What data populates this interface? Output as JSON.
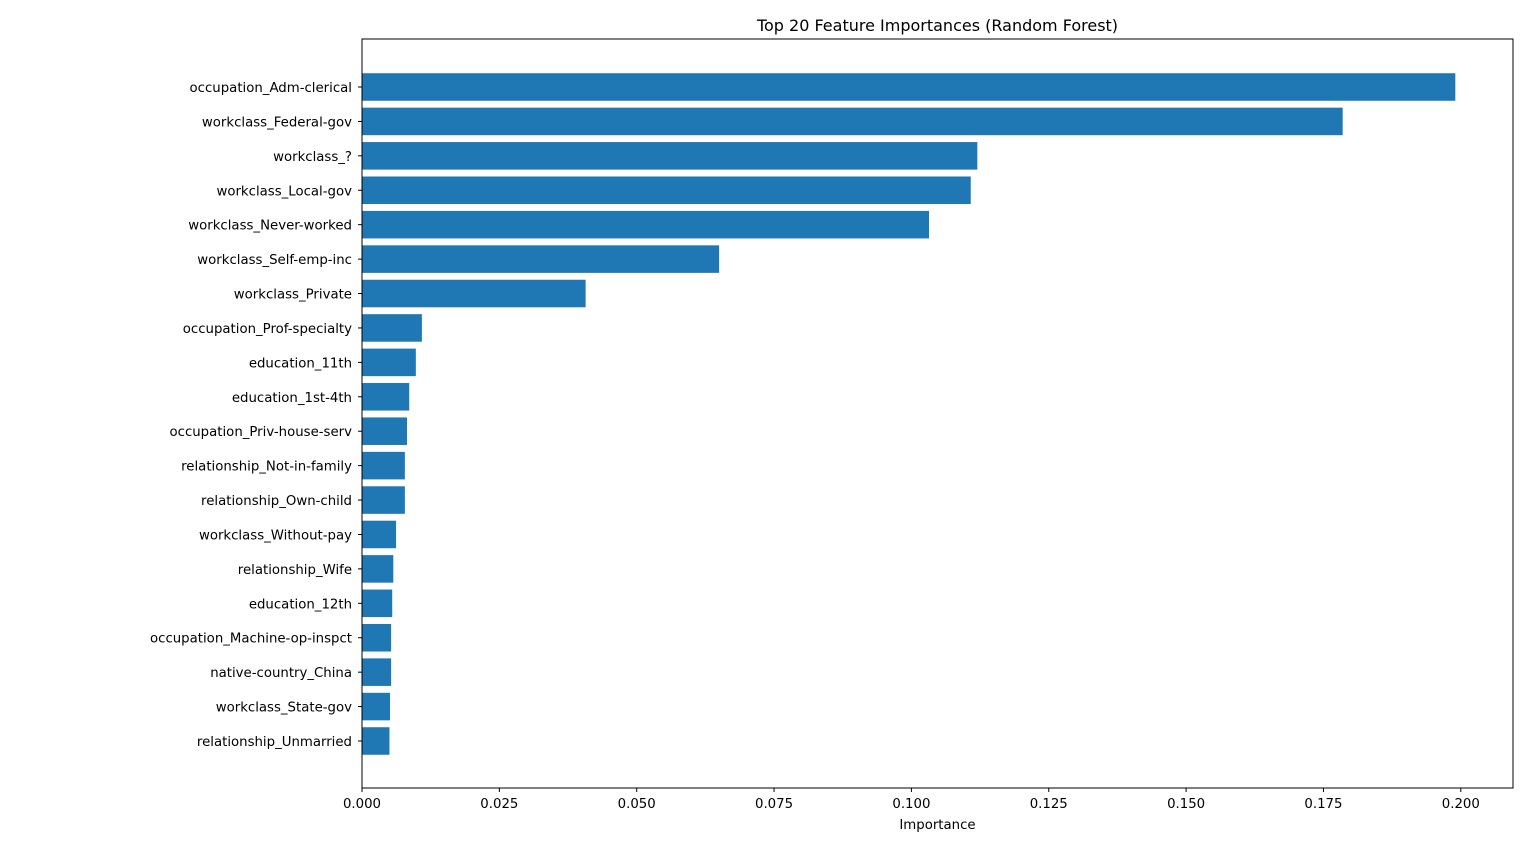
{
  "chart_data": {
    "type": "bar",
    "orientation": "horizontal",
    "title": "Top 20 Feature Importances (Random Forest)",
    "xlabel": "Importance",
    "ylabel": "",
    "xlim": [
      0,
      0.2095
    ],
    "x_ticks": [
      "0.000",
      "0.025",
      "0.050",
      "0.075",
      "0.100",
      "0.125",
      "0.150",
      "0.175",
      "0.200"
    ],
    "bar_color": "#1f77b4",
    "grid": false,
    "categories": [
      "occupation_Adm-clerical",
      "workclass_Federal-gov",
      "workclass_?",
      "workclass_Local-gov",
      "workclass_Never-worked",
      "workclass_Self-emp-inc",
      "workclass_Private",
      "occupation_Prof-specialty",
      "education_11th",
      "education_1st-4th",
      "occupation_Priv-house-serv",
      "relationship_Not-in-family",
      "relationship_Own-child",
      "workclass_Without-pay",
      "relationship_Wife",
      "education_12th",
      "occupation_Machine-op-inspct",
      "native-country_China",
      "workclass_State-gov",
      "relationship_Unmarried"
    ],
    "values": [
      0.199,
      0.1785,
      0.112,
      0.1108,
      0.1032,
      0.065,
      0.0407,
      0.0109,
      0.0098,
      0.0086,
      0.0082,
      0.0078,
      0.0078,
      0.0062,
      0.0057,
      0.0055,
      0.0053,
      0.0053,
      0.0051,
      0.005
    ]
  }
}
